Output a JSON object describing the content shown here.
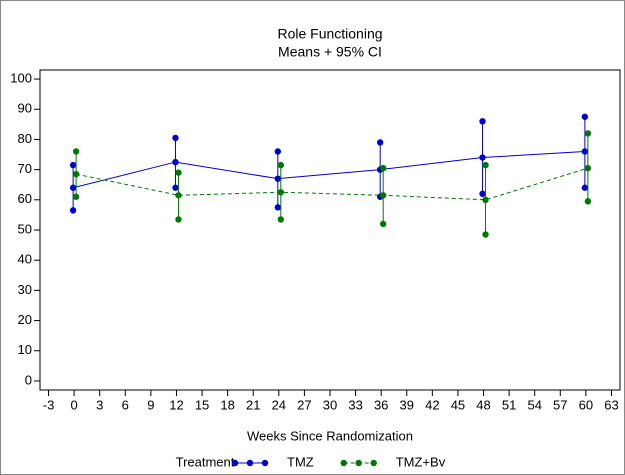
{
  "chart_data": {
    "type": "line",
    "title": "Role Functioning",
    "subtitle": "Means + 95% CI",
    "x_label": "Weeks Since Randomization",
    "legend_title": "Treatment",
    "legend_position": "bottom",
    "x": [
      0,
      12,
      24,
      36,
      48,
      60
    ],
    "series": [
      {
        "name": "TMZ",
        "color": "#0000cc",
        "line_style": "solid",
        "values": [
          64,
          72.5,
          67,
          70,
          74,
          76
        ],
        "upper": [
          71.5,
          80.5,
          76,
          79,
          86,
          87.5
        ],
        "lower": [
          56.5,
          64,
          57.5,
          61,
          62,
          64
        ]
      },
      {
        "name": "TMZ+Bv",
        "color": "#007700",
        "line_style": "dashed",
        "values": [
          68.5,
          61.5,
          62.5,
          61.5,
          60,
          70.5
        ],
        "upper": [
          76,
          69,
          71.5,
          70.5,
          71.5,
          82
        ],
        "lower": [
          61,
          53.5,
          53.5,
          52,
          48.5,
          59.5
        ]
      }
    ],
    "xlim": [
      -4,
      64
    ],
    "xticks": [
      -3,
      0,
      3,
      6,
      9,
      12,
      15,
      18,
      21,
      24,
      27,
      30,
      33,
      36,
      39,
      42,
      45,
      48,
      51,
      54,
      57,
      60,
      63
    ],
    "ylim": [
      -3,
      103
    ],
    "yticks": [
      0,
      10,
      20,
      30,
      40,
      50,
      60,
      70,
      80,
      90,
      100
    ]
  }
}
